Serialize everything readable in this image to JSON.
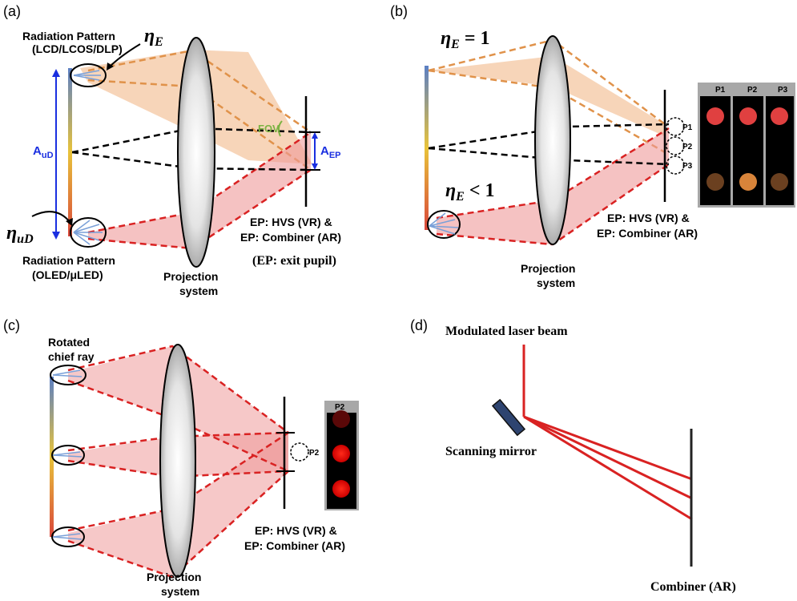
{
  "panels": {
    "a": {
      "label": "(a)",
      "radiation_top": [
        "Radiation Pattern",
        "(LCD/LCOS/DLP)"
      ],
      "eta_e": "η",
      "eta_e_sub": "E",
      "a_ud": "A",
      "a_ud_sub": "uD",
      "eta_ud": "η",
      "eta_ud_sub": "uD",
      "fov": "FOV",
      "a_ep": "A",
      "a_ep_sub": "EP",
      "ep_lines": [
        "EP: HVS (VR) &",
        "EP: Combiner (AR)"
      ],
      "ep_note": "(EP: exit pupil)",
      "radiation_bottom": [
        "Radiation Pattern",
        "(OLED/μLED)"
      ],
      "projection": [
        "Projection",
        "system"
      ]
    },
    "b": {
      "label": "(b)",
      "eta_top": "η",
      "eta_top_sub": "E",
      "eta_top_rel": "= 1",
      "eta_bottom": "η",
      "eta_bottom_sub": "E",
      "eta_bottom_rel": "< 1",
      "pupils": [
        "P1",
        "P2",
        "P3"
      ],
      "ep_lines": [
        "EP: HVS (VR) &",
        "EP: Combiner (AR)"
      ],
      "projection": [
        "Projection",
        "system"
      ],
      "inset_headers": [
        "P1",
        "P2",
        "P3"
      ]
    },
    "c": {
      "label": "(c)",
      "rotated": [
        "Rotated",
        "chief ray"
      ],
      "pupil": "P2",
      "inset_header": "P2",
      "ep_lines": [
        "EP: HVS (VR) &",
        "EP: Combiner (AR)"
      ],
      "projection": [
        "Projection",
        "system"
      ]
    },
    "d": {
      "label": "(d)",
      "laser": "Modulated laser beam",
      "mirror": "Scanning mirror",
      "combiner": "Combiner (AR)"
    }
  },
  "colors": {
    "orange": "#e0924a",
    "red": "#d92222",
    "blue": "#1a2fe0",
    "fov_green": "#7cb342"
  }
}
